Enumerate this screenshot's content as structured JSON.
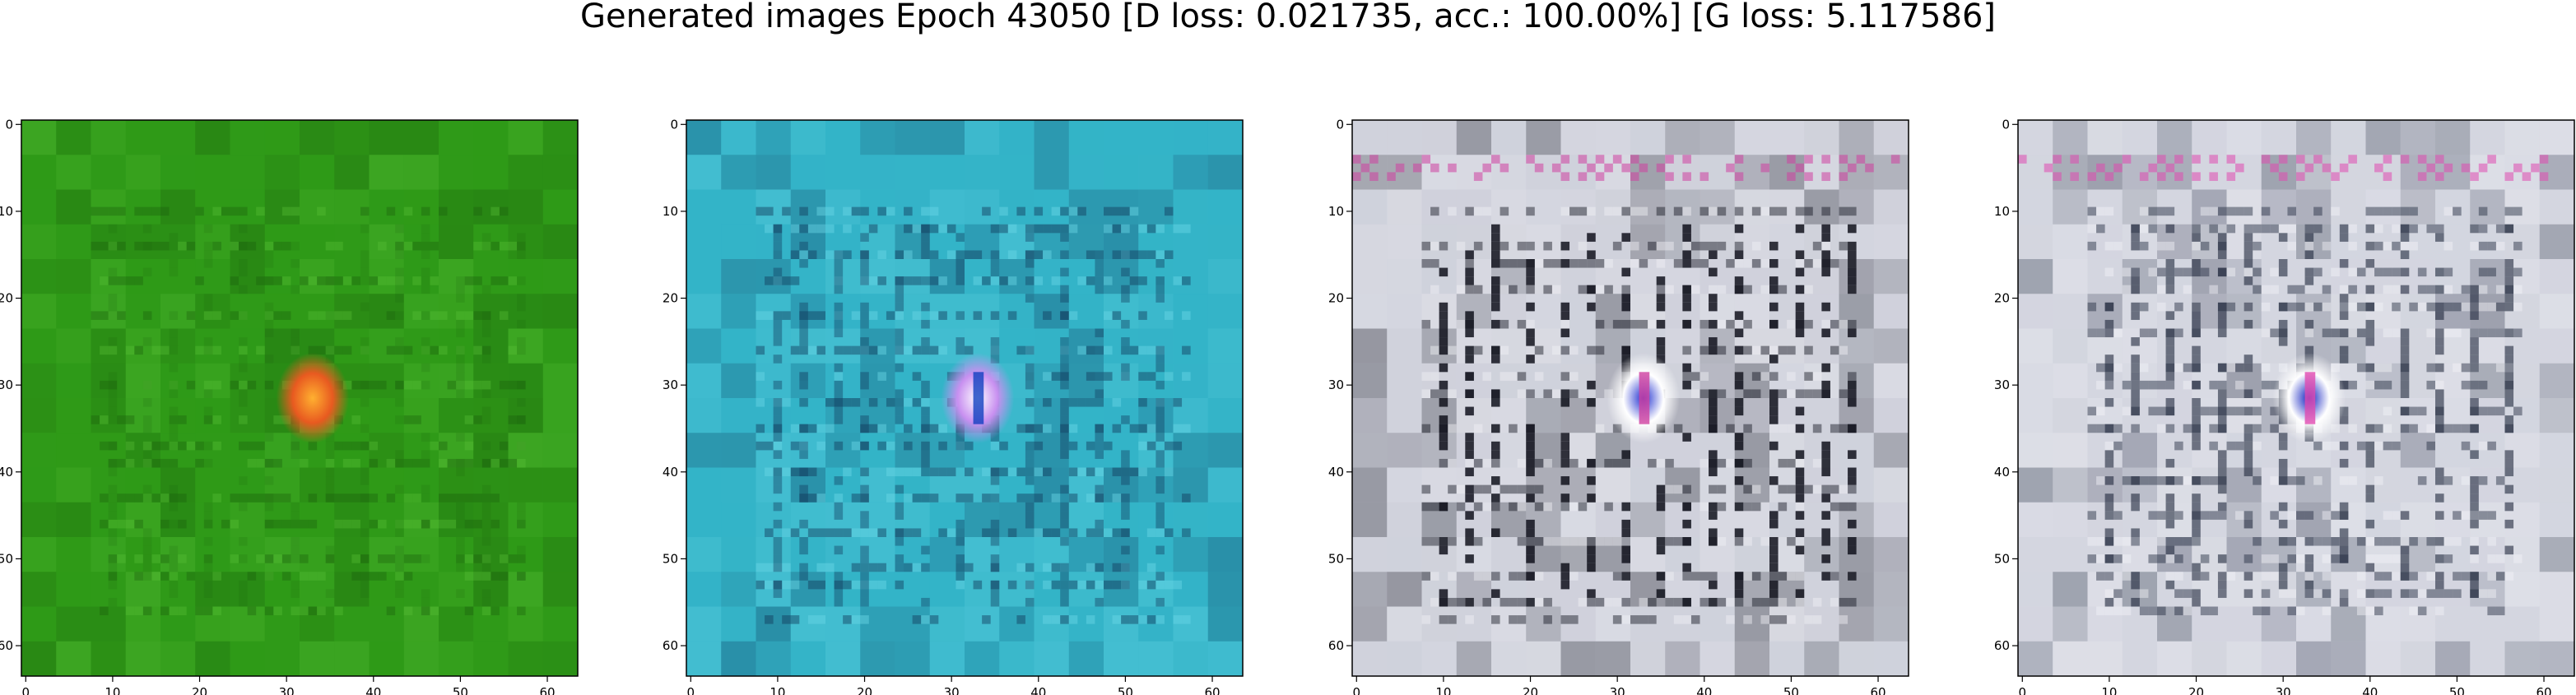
{
  "title": "Generated images Epoch 43050 [D loss: 0.021735, acc.: 100.00%] [G loss: 5.117586]",
  "axis_ticks": [
    "0",
    "10",
    "20",
    "30",
    "40",
    "50",
    "60"
  ],
  "panels": [
    {
      "theme": "green",
      "colors": {
        "base": "#2f9a18",
        "dark": "#1b5c0c",
        "light": "#5cc23a",
        "blob": "#e85a20",
        "blob_core": "#ffb030",
        "edge": "#c48a30"
      }
    },
    {
      "theme": "cyan",
      "colors": {
        "base": "#34b4c8",
        "dark": "#123a5c",
        "light": "#6ad8e6",
        "blob": "#c890f0",
        "blob_core": "#ffffff",
        "edge": "#1040c0"
      }
    },
    {
      "theme": "grey",
      "colors": {
        "base": "#d0d2dc",
        "dark": "#10121c",
        "light": "#f2f2f6",
        "blob": "#ffffff",
        "blob_core": "#2030d0",
        "edge": "#d040a0"
      }
    },
    {
      "theme": "grey-blue",
      "colors": {
        "base": "#d4d6e0",
        "dark": "#20283c",
        "light": "#f4f4f8",
        "blob": "#ffffff",
        "blob_core": "#1020c0",
        "edge": "#e04ab0"
      }
    }
  ]
}
